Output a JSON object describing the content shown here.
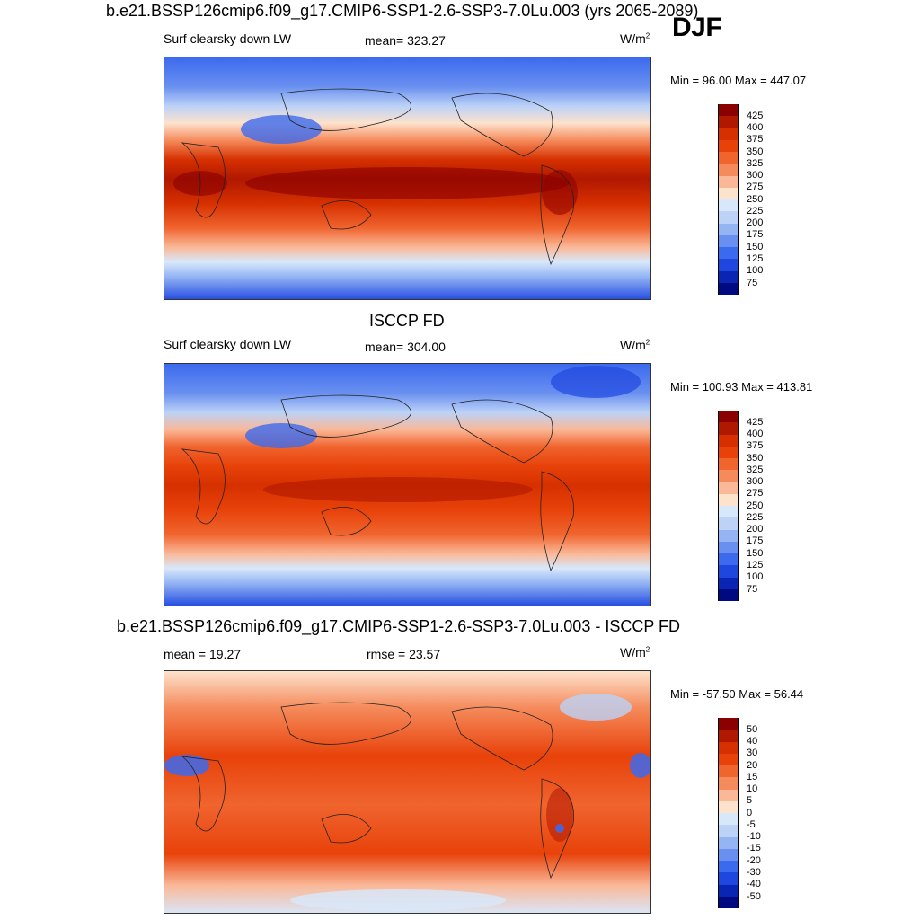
{
  "season": "DJF",
  "panels": [
    {
      "title": "b.e21.BSSP126cmip6.f09_g17.CMIP6-SSP1-2.6-SSP3-7.0Lu.003 (yrs 2065-2089)",
      "left_label": "Surf clearsky down LW",
      "center_label": "mean= 323.27",
      "units_base": "W/m",
      "units_exp": "2",
      "minmax": "Min =  96.00 Max = 447.07"
    },
    {
      "title": "ISCCP FD",
      "left_label": "Surf clearsky down LW",
      "center_label": "mean= 304.00",
      "units_base": "W/m",
      "units_exp": "2",
      "minmax": "Min = 100.93 Max = 413.81"
    },
    {
      "title": "b.e21.BSSP126cmip6.f09_g17.CMIP6-SSP1-2.6-SSP3-7.0Lu.003 - ISCCP FD",
      "left_label": "mean =  19.27",
      "center_label": "rmse =  23.57",
      "units_base": "W/m",
      "units_exp": "2",
      "minmax": "Min = -57.50 Max =  56.44"
    }
  ],
  "colorbars": {
    "abs": {
      "labels": [
        "425",
        "400",
        "375",
        "350",
        "325",
        "300",
        "275",
        "250",
        "225",
        "200",
        "175",
        "150",
        "125",
        "100",
        "75"
      ],
      "colors": [
        "#8b0000",
        "#b01800",
        "#d63000",
        "#e8420a",
        "#f0642e",
        "#f58b5c",
        "#fab898",
        "#fde2cc",
        "#d8e8fb",
        "#bcd2f7",
        "#94b4f4",
        "#6990f0",
        "#3c6aee",
        "#1f47e0",
        "#0a24b4",
        "#000a80"
      ]
    },
    "diff": {
      "labels": [
        "50",
        "40",
        "30",
        "20",
        "15",
        "10",
        "5",
        "0",
        "-5",
        "-10",
        "-15",
        "-20",
        "-30",
        "-40",
        "-50"
      ],
      "colors": [
        "#8b0000",
        "#b01800",
        "#d63000",
        "#e8420a",
        "#f0642e",
        "#f58b5c",
        "#fab898",
        "#fde2cc",
        "#d8e8fb",
        "#bcd2f7",
        "#94b4f4",
        "#6990f0",
        "#3c6aee",
        "#1f47e0",
        "#0a24b4",
        "#000a80"
      ]
    }
  }
}
